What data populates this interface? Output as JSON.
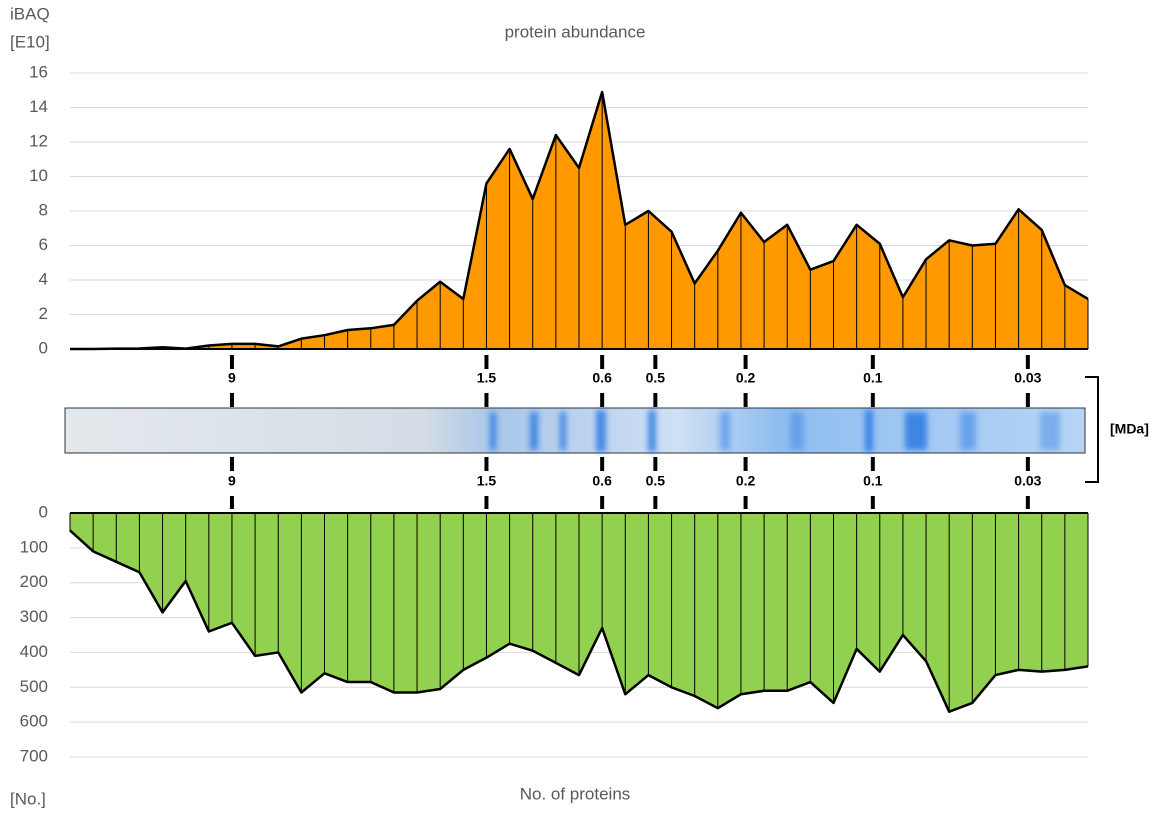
{
  "chart_data": [
    {
      "type": "area",
      "title": "protein abundance",
      "y_label": [
        "iBAQ",
        "[E10]"
      ],
      "color": "#ff9900",
      "values": [
        0,
        0,
        0.02,
        0.03,
        0.1,
        0.02,
        0.2,
        0.3,
        0.3,
        0.15,
        0.6,
        0.8,
        1.1,
        1.2,
        1.4,
        2.8,
        3.9,
        2.9,
        9.6,
        11.6,
        8.7,
        12.4,
        10.5,
        14.9,
        7.2,
        8.0,
        6.8,
        3.8,
        5.7,
        7.9,
        6.2,
        7.2,
        4.6,
        5.1,
        7.2,
        6.1,
        3.0,
        5.2,
        6.3,
        6.0,
        6.1,
        8.1,
        6.9,
        3.7,
        2.9
      ],
      "ylim": [
        0,
        16
      ],
      "yticks": [
        0,
        2,
        4,
        6,
        8,
        10,
        12,
        14,
        16
      ],
      "grid": true,
      "inverted": false
    },
    {
      "type": "area",
      "title": "No. of proteins",
      "y_label": [
        "[No.]"
      ],
      "color": "#92d050",
      "values": [
        50,
        110,
        140,
        170,
        285,
        195,
        340,
        315,
        410,
        400,
        515,
        460,
        485,
        485,
        515,
        515,
        505,
        450,
        415,
        375,
        395,
        430,
        465,
        330,
        520,
        465,
        500,
        525,
        560,
        520,
        510,
        510,
        485,
        545,
        390,
        455,
        350,
        425,
        570,
        545,
        465,
        450,
        455,
        450,
        440
      ],
      "ylim": [
        0,
        700
      ],
      "yticks": [
        0,
        100,
        200,
        300,
        400,
        500,
        600,
        700
      ],
      "grid": true,
      "inverted": true
    }
  ],
  "size_axis": {
    "unit": "[MDa]",
    "markers": [
      {
        "label": "9",
        "index": 7
      },
      {
        "label": "1.5",
        "index": 18
      },
      {
        "label": "0.6",
        "index": 23
      },
      {
        "label": "0.5",
        "index": 25.3
      },
      {
        "label": "0.2",
        "index": 29.2
      },
      {
        "label": "0.1",
        "index": 34.7
      },
      {
        "label": "0.03",
        "index": 41.4
      }
    ]
  }
}
